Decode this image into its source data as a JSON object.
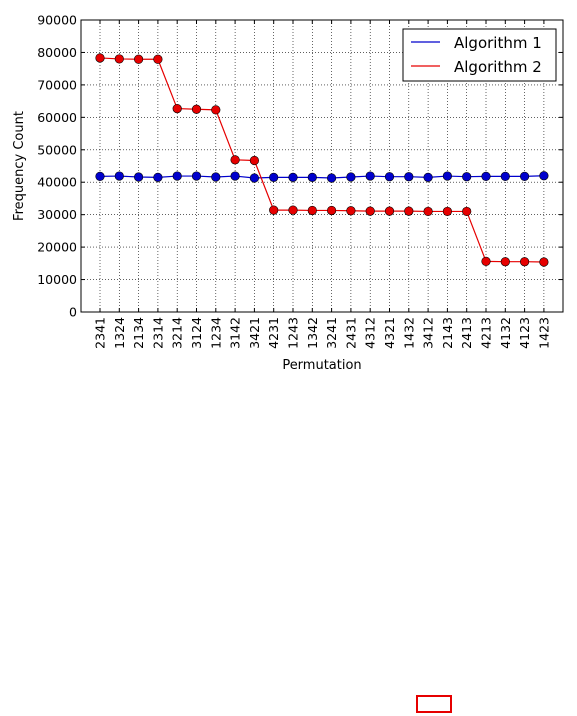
{
  "chart_data": {
    "type": "line",
    "title": "",
    "xlabel": "Permutation",
    "ylabel": "Frequency Count",
    "ylim": [
      0,
      90000
    ],
    "yticks": [
      0,
      10000,
      20000,
      30000,
      40000,
      50000,
      60000,
      70000,
      80000,
      90000
    ],
    "grid": true,
    "legend_position": "top-right",
    "categories": [
      "2341",
      "1324",
      "2134",
      "2314",
      "3214",
      "3124",
      "1234",
      "3142",
      "3421",
      "4231",
      "1243",
      "1342",
      "3241",
      "2431",
      "4312",
      "4321",
      "1432",
      "3412",
      "2143",
      "2413",
      "4213",
      "4132",
      "4123",
      "1423"
    ],
    "series": [
      {
        "name": "Algorithm 1",
        "color": "#0000cc",
        "values": [
          41800,
          41900,
          41600,
          41500,
          41900,
          41900,
          41600,
          41900,
          41300,
          41500,
          41500,
          41500,
          41300,
          41600,
          41900,
          41700,
          41700,
          41500,
          41900,
          41700,
          41800,
          41800,
          41800,
          42000
        ]
      },
      {
        "name": "Algorithm 2",
        "color": "#e60000",
        "values": [
          78300,
          78000,
          77900,
          77900,
          62700,
          62500,
          62300,
          46900,
          46700,
          31400,
          31400,
          31300,
          31300,
          31200,
          31100,
          31100,
          31100,
          31000,
          31000,
          31000,
          15600,
          15500,
          15500,
          15400
        ]
      }
    ]
  }
}
